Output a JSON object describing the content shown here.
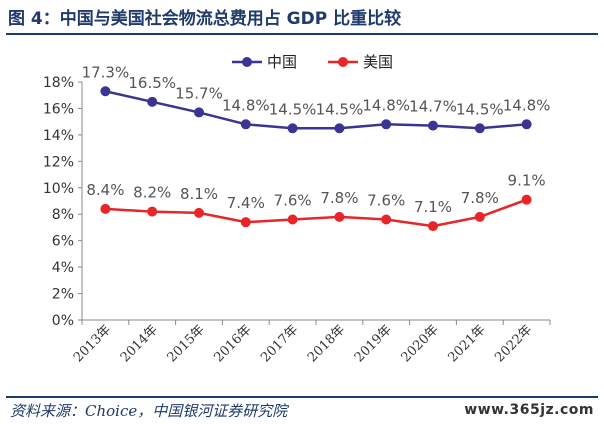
{
  "figure": {
    "title": "图 4：中国与美国社会物流总费用占 GDP 比重比较",
    "source": "资料来源：Choice，中国银河证券研究院",
    "watermark": "www.365jz.com"
  },
  "chart_data": {
    "type": "line",
    "title": "",
    "xlabel": "",
    "ylabel": "",
    "categories": [
      "2013年",
      "2014年",
      "2015年",
      "2016年",
      "2017年",
      "2018年",
      "2019年",
      "2020年",
      "2021年",
      "2022年"
    ],
    "series": [
      {
        "name": "中国",
        "color": "#3a3592",
        "values": [
          17.3,
          16.5,
          15.7,
          14.8,
          14.5,
          14.5,
          14.8,
          14.7,
          14.5,
          14.8
        ],
        "labels": [
          "17.3%",
          "16.5%",
          "15.7%",
          "14.8%",
          "14.5%",
          "14.5%",
          "14.8%",
          "14.7%",
          "14.5%",
          "14.8%"
        ]
      },
      {
        "name": "美国",
        "color": "#e8262a",
        "values": [
          8.4,
          8.2,
          8.1,
          7.4,
          7.6,
          7.8,
          7.6,
          7.1,
          7.8,
          9.1
        ],
        "labels": [
          "8.4%",
          "8.2%",
          "8.1%",
          "7.4%",
          "7.6%",
          "7.8%",
          "7.6%",
          "7.1%",
          "7.8%",
          "9.1%"
        ]
      }
    ],
    "ylim": [
      0,
      18
    ],
    "y_ticks": [
      0,
      2,
      4,
      6,
      8,
      10,
      12,
      14,
      16,
      18
    ],
    "y_tick_labels": [
      "0%",
      "2%",
      "4%",
      "6%",
      "8%",
      "10%",
      "12%",
      "14%",
      "16%",
      "18%"
    ],
    "grid": false,
    "legend": "top-center"
  }
}
